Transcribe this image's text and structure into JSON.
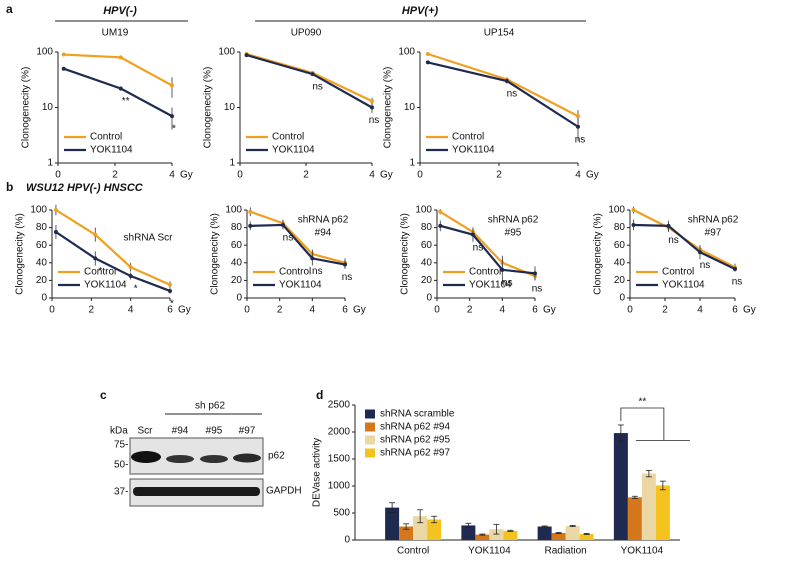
{
  "figure": {
    "panels": [
      "a",
      "b",
      "c",
      "d"
    ],
    "headers": [
      "HPV(-)",
      "HPV(+)",
      "WSU12 HPV(-) HNSCC"
    ]
  },
  "blot": {
    "group_label": "sh p62",
    "lanes": [
      "Scr",
      "#94",
      "#95",
      "#97"
    ],
    "unit": "kDa",
    "markers": [
      "75-",
      "50-",
      "37-"
    ],
    "bands": [
      "p62",
      "GAPDH"
    ]
  },
  "chart_data": [
    {
      "type": "line",
      "title": "UM19",
      "ylabel": "Clonogenecity (%)",
      "xlabel": "Gy",
      "log_scale": true,
      "legend": "lower left",
      "x": [
        0.2,
        2.2,
        4
      ],
      "xlim": [
        0,
        4
      ],
      "xticks": [
        0,
        2,
        4
      ],
      "ylim": [
        1,
        100
      ],
      "yticks": [
        1,
        10,
        100
      ],
      "series": [
        {
          "name": "Control",
          "color": "#f0a020",
          "values": [
            90,
            80,
            25
          ],
          "errors": [
            3,
            3,
            10
          ]
        },
        {
          "name": "YOK1104",
          "color": "#1f2a50",
          "values": [
            50,
            22,
            7
          ],
          "errors": [
            2,
            2,
            3
          ]
        }
      ],
      "annotations": [
        null,
        "**",
        "*"
      ]
    },
    {
      "type": "line",
      "title": "UP090",
      "ylabel": "Clonogenecity (%)",
      "xlabel": "Gy",
      "log_scale": true,
      "legend": "lower left",
      "x": [
        0.2,
        2.2,
        4
      ],
      "xlim": [
        0,
        4
      ],
      "xticks": [
        0,
        2,
        4
      ],
      "ylim": [
        1,
        100
      ],
      "yticks": [
        1,
        10,
        100
      ],
      "series": [
        {
          "name": "Control",
          "color": "#f0a020",
          "values": [
            92,
            42,
            13
          ],
          "errors": [
            3,
            3,
            2
          ]
        },
        {
          "name": "YOK1104",
          "color": "#1f2a50",
          "values": [
            88,
            40,
            10
          ],
          "errors": [
            3,
            3,
            2
          ]
        }
      ],
      "annotations": [
        null,
        "ns",
        "ns"
      ]
    },
    {
      "type": "line",
      "title": "UP154",
      "ylabel": "Clonogenecity (%)",
      "xlabel": "Gy",
      "log_scale": true,
      "legend": "lower left",
      "x": [
        0.2,
        2.2,
        4
      ],
      "xlim": [
        0,
        4
      ],
      "xticks": [
        0,
        2,
        4
      ],
      "ylim": [
        1,
        100
      ],
      "yticks": [
        1,
        10,
        100
      ],
      "series": [
        {
          "name": "Control",
          "color": "#f0a020",
          "values": [
            92,
            32,
            7
          ],
          "errors": [
            3,
            3,
            2
          ]
        },
        {
          "name": "YOK1104",
          "color": "#1f2a50",
          "values": [
            65,
            30,
            4.5
          ],
          "errors": [
            3,
            3,
            2
          ]
        }
      ],
      "annotations": [
        null,
        "ns",
        "ns"
      ]
    },
    {
      "type": "line",
      "title": "shRNA Scr",
      "ylabel": "Clonogenecity (%)",
      "xlabel": "Gy",
      "log_scale": false,
      "legend": "lower left",
      "x": [
        0.2,
        2.2,
        4,
        6
      ],
      "xlim": [
        0,
        6
      ],
      "xticks": [
        0,
        2,
        4,
        6
      ],
      "ylim": [
        0,
        100
      ],
      "yticks": [
        0,
        20,
        40,
        60,
        80,
        100
      ],
      "series": [
        {
          "name": "Control",
          "color": "#f0a020",
          "values": [
            100,
            72,
            35,
            15
          ],
          "errors": [
            6,
            8,
            5,
            4
          ]
        },
        {
          "name": "YOK1104",
          "color": "#1f2a50",
          "values": [
            75,
            45,
            25,
            8
          ],
          "errors": [
            8,
            8,
            4,
            3
          ]
        }
      ],
      "annotations": [
        null,
        "*",
        "*",
        "*"
      ]
    },
    {
      "type": "line",
      "title": [
        "shRNA p62",
        "#94"
      ],
      "ylabel": "Clonogenecity (%)",
      "xlabel": "Gy",
      "log_scale": false,
      "legend": "lower left",
      "x": [
        0.2,
        2.2,
        4,
        6
      ],
      "xlim": [
        0,
        6
      ],
      "xticks": [
        0,
        2,
        4,
        6
      ],
      "ylim": [
        0,
        100
      ],
      "yticks": [
        0,
        20,
        40,
        60,
        80,
        100
      ],
      "series": [
        {
          "name": "Control",
          "color": "#f0a020",
          "values": [
            98,
            85,
            50,
            40
          ],
          "errors": [
            5,
            4,
            5,
            5
          ]
        },
        {
          "name": "YOK1104",
          "color": "#1f2a50",
          "values": [
            82,
            83,
            45,
            38
          ],
          "errors": [
            5,
            5,
            8,
            5
          ]
        }
      ],
      "annotations": [
        null,
        "ns",
        "ns",
        "ns"
      ]
    },
    {
      "type": "line",
      "title": [
        "shRNA p62",
        "#95"
      ],
      "ylabel": "Clonogenecity (%)",
      "xlabel": "Gy",
      "log_scale": false,
      "legend": "lower left",
      "x": [
        0.2,
        2.2,
        4,
        6
      ],
      "xlim": [
        0,
        6
      ],
      "xticks": [
        0,
        2,
        4,
        6
      ],
      "ylim": [
        0,
        100
      ],
      "yticks": [
        0,
        20,
        40,
        60,
        80,
        100
      ],
      "series": [
        {
          "name": "Control",
          "color": "#f0a020",
          "values": [
            98,
            75,
            40,
            25
          ],
          "errors": [
            3,
            5,
            5,
            5
          ]
        },
        {
          "name": "YOK1104",
          "color": "#1f2a50",
          "values": [
            82,
            72,
            32,
            28
          ],
          "errors": [
            6,
            8,
            16,
            8
          ]
        }
      ],
      "annotations": [
        null,
        "ns",
        "ns",
        "ns"
      ]
    },
    {
      "type": "line",
      "title": [
        "shRNA p62",
        "#97"
      ],
      "ylabel": "Clonogenecity (%)",
      "xlabel": "Gy",
      "log_scale": false,
      "legend": "lower left",
      "x": [
        0.2,
        2.2,
        4,
        6
      ],
      "xlim": [
        0,
        6
      ],
      "xticks": [
        0,
        2,
        4,
        6
      ],
      "ylim": [
        0,
        100
      ],
      "yticks": [
        0,
        20,
        40,
        60,
        80,
        100
      ],
      "series": [
        {
          "name": "Control",
          "color": "#f0a020",
          "values": [
            100,
            80,
            55,
            35
          ],
          "errors": [
            4,
            5,
            5,
            4
          ]
        },
        {
          "name": "YOK1104",
          "color": "#1f2a50",
          "values": [
            83,
            82,
            52,
            33
          ],
          "errors": [
            6,
            6,
            8,
            3
          ]
        }
      ],
      "annotations": [
        null,
        "ns",
        "ns",
        "ns"
      ]
    },
    {
      "type": "bar",
      "ylabel": "DEVase activity",
      "legend": "upper left",
      "categories": [
        "Control",
        "YOK1104",
        "Radiation",
        "YOK1104"
      ],
      "ylim": [
        0,
        2500
      ],
      "yticks": [
        0,
        500,
        1000,
        1500,
        2000,
        2500
      ],
      "series": [
        {
          "name": "shRNA scramble",
          "color": "#1f2a50",
          "values": [
            600,
            270,
            250,
            1980
          ],
          "errors": [
            90,
            40,
            10,
            150
          ]
        },
        {
          "name": "shRNA p62 #94",
          "color": "#d4771a",
          "values": [
            250,
            100,
            130,
            790
          ],
          "errors": [
            50,
            10,
            10,
            20
          ]
        },
        {
          "name": "shRNA p62 #95",
          "color": "#ead7a4",
          "values": [
            440,
            200,
            260,
            1230
          ],
          "errors": [
            120,
            90,
            10,
            60
          ]
        },
        {
          "name": "shRNA p62 #97",
          "color": "#f4c320",
          "values": [
            380,
            170,
            110,
            1010
          ],
          "errors": [
            60,
            10,
            10,
            80
          ]
        }
      ],
      "annotation": "**"
    }
  ]
}
